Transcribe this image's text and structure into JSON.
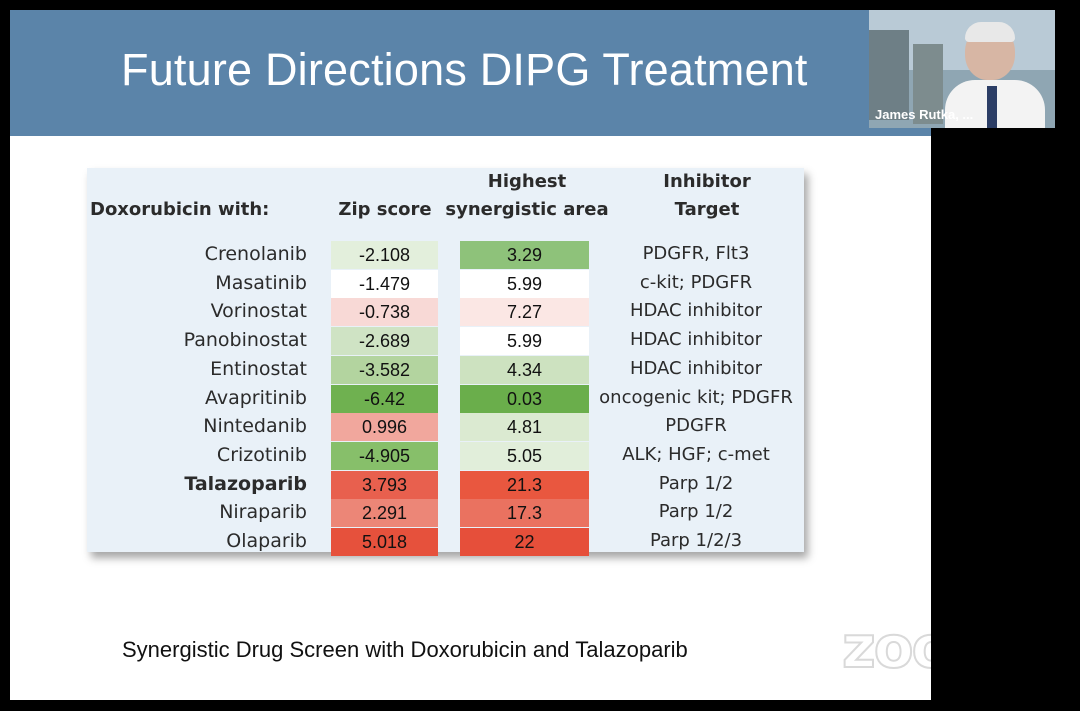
{
  "slide": {
    "title": "Future Directions DIPG Treatment",
    "caption": "Synergistic Drug Screen with Doxorubicin and Talazoparib"
  },
  "table": {
    "headers": {
      "drug": "Doxorubicin with:",
      "zip": "Zip score",
      "area_line1": "Highest",
      "area_line2": "synergistic area",
      "target_line1": "Inhibitor",
      "target_line2": "Target"
    },
    "rows": [
      {
        "drug": "Crenolanib",
        "zip": "-2.108",
        "area": "3.29",
        "target": "PDGFR, Flt3",
        "zip_color": "#e3efdc",
        "area_color": "#8ec27a",
        "bold": false
      },
      {
        "drug": "Masatinib",
        "zip": "-1.479",
        "area": "5.99",
        "target": "c-kit; PDGFR",
        "zip_color": "#ffffff",
        "area_color": "#ffffff",
        "bold": false
      },
      {
        "drug": "Vorinostat",
        "zip": "-0.738",
        "area": "7.27",
        "target": "HDAC inhibitor",
        "zip_color": "#f8d9d6",
        "area_color": "#fbe7e4",
        "bold": false
      },
      {
        "drug": "Panobinostat",
        "zip": "-2.689",
        "area": "5.99",
        "target": "HDAC inhibitor",
        "zip_color": "#cfe3c4",
        "area_color": "#ffffff",
        "bold": false
      },
      {
        "drug": "Entinostat",
        "zip": "-3.582",
        "area": "4.34",
        "target": "HDAC inhibitor",
        "zip_color": "#b3d49f",
        "area_color": "#cde2c0",
        "bold": false
      },
      {
        "drug": "Avapritinib",
        "zip": "-6.42",
        "area": "0.03",
        "target": "oncogenic kit; PDGFR",
        "zip_color": "#6fb150",
        "area_color": "#6aae4b",
        "bold": false
      },
      {
        "drug": "Nintedanib",
        "zip": "0.996",
        "area": "4.81",
        "target": "PDGFR",
        "zip_color": "#f1a79d",
        "area_color": "#dbead1",
        "bold": false
      },
      {
        "drug": "Crizotinib",
        "zip": "-4.905",
        "area": "5.05",
        "target": "ALK; HGF; c-met",
        "zip_color": "#87bf6a",
        "area_color": "#e1eeda",
        "bold": false
      },
      {
        "drug": "Talazoparib",
        "zip": "3.793",
        "area": "21.3",
        "target": "Parp 1/2",
        "zip_color": "#e8604e",
        "area_color": "#e9573f",
        "bold": true
      },
      {
        "drug": "Niraparib",
        "zip": "2.291",
        "area": "17.3",
        "target": "Parp 1/2",
        "zip_color": "#ec8677",
        "area_color": "#ea7260",
        "bold": false
      },
      {
        "drug": "Olaparib",
        "zip": "5.018",
        "area": "22",
        "target": "Parp 1/2/3",
        "zip_color": "#e6513c",
        "area_color": "#e64f3a",
        "bold": false
      }
    ]
  },
  "video": {
    "participant_name": "James Rutka, ..."
  },
  "branding": {
    "watermark": "zoom"
  },
  "colors": {
    "header_bar": "#5b84a9",
    "table_bg": "#e9f1f8"
  }
}
